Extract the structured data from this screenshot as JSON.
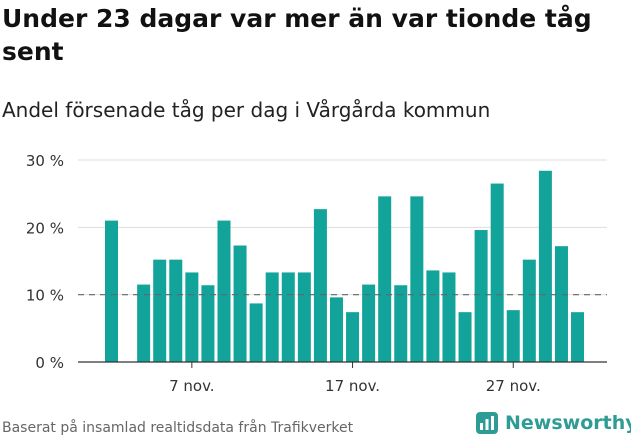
{
  "header": {
    "title": "Under 23 dagar var mer än var tionde tåg sent",
    "subtitle": "Andel försenade tåg per dag i Vårgårda kommun"
  },
  "footer": {
    "source": "Baserat på insamlad realtidsdata från Trafikverket",
    "brand": "Newsworthy"
  },
  "colors": {
    "bar": "#12a39a",
    "grid": "#dddddd",
    "reference_line": "#666666",
    "axis": "#333333",
    "brand": "#2e9c95"
  },
  "chart_data": {
    "type": "bar",
    "y_unit": "%",
    "ylim": [
      0,
      30
    ],
    "y_ticks": [
      0,
      10,
      20,
      30
    ],
    "y_tick_labels": [
      "0 %",
      "10 %",
      "20 %",
      "30 %"
    ],
    "x_tick_labels": [
      {
        "index": 5,
        "label": "7 nov."
      },
      {
        "index": 15,
        "label": "17 nov."
      },
      {
        "index": 25,
        "label": "27 nov."
      }
    ],
    "reference_line": 10,
    "grid": true,
    "values": [
      21,
      null,
      11.5,
      15.2,
      15.2,
      13.3,
      11.4,
      21,
      17.3,
      8.7,
      13.3,
      13.3,
      13.3,
      22.7,
      9.6,
      7.4,
      11.5,
      24.6,
      11.4,
      24.6,
      13.6,
      13.3,
      7.4,
      19.6,
      26.5,
      7.7,
      15.2,
      28.4,
      17.2,
      7.4
    ]
  }
}
